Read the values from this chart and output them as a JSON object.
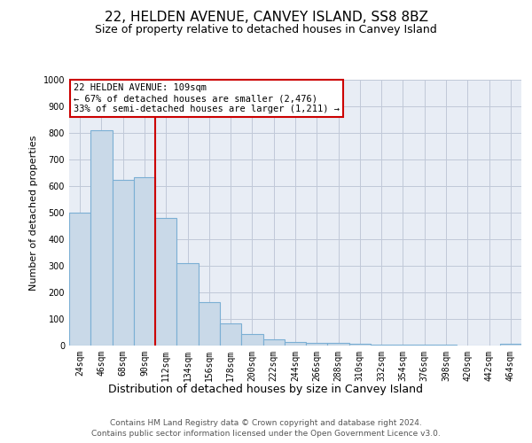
{
  "title1": "22, HELDEN AVENUE, CANVEY ISLAND, SS8 8BZ",
  "title2": "Size of property relative to detached houses in Canvey Island",
  "xlabel": "Distribution of detached houses by size in Canvey Island",
  "ylabel": "Number of detached properties",
  "categories": [
    "24sqm",
    "46sqm",
    "68sqm",
    "90sqm",
    "112sqm",
    "134sqm",
    "156sqm",
    "178sqm",
    "200sqm",
    "222sqm",
    "244sqm",
    "266sqm",
    "288sqm",
    "310sqm",
    "332sqm",
    "354sqm",
    "376sqm",
    "398sqm",
    "420sqm",
    "442sqm",
    "464sqm"
  ],
  "values": [
    500,
    810,
    625,
    635,
    480,
    310,
    163,
    82,
    45,
    23,
    15,
    10,
    10,
    7,
    4,
    5,
    3,
    2,
    0,
    0,
    8
  ],
  "bar_color": "#c9d9e8",
  "bar_edge_color": "#7bafd4",
  "vline_x_idx": 4,
  "vline_color": "#cc0000",
  "annotation_title": "22 HELDEN AVENUE: 109sqm",
  "annotation_line1": "← 67% of detached houses are smaller (2,476)",
  "annotation_line2": "33% of semi-detached houses are larger (1,211) →",
  "annotation_box_color": "#cc0000",
  "annotation_text_color": "#000000",
  "annotation_bg": "#ffffff",
  "ylim": [
    0,
    1000
  ],
  "yticks": [
    0,
    100,
    200,
    300,
    400,
    500,
    600,
    700,
    800,
    900,
    1000
  ],
  "grid_color": "#c0c8d8",
  "bg_color": "#e8edf5",
  "footer1": "Contains HM Land Registry data © Crown copyright and database right 2024.",
  "footer2": "Contains public sector information licensed under the Open Government Licence v3.0.",
  "title1_fontsize": 11,
  "title2_fontsize": 9,
  "xlabel_fontsize": 9,
  "ylabel_fontsize": 8,
  "tick_fontsize": 7,
  "footer_fontsize": 6.5
}
